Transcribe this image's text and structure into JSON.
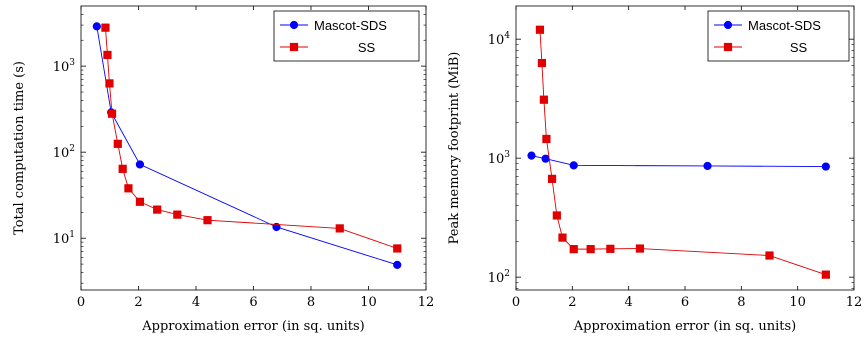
{
  "colors": {
    "blue": "#0000ff",
    "red": "#e00000"
  },
  "chart_data": [
    {
      "type": "line",
      "yscale": "log",
      "xlabel": "Approximation error (in sq. units)",
      "ylabel": "Total computation time (s)",
      "xlim": [
        0,
        12
      ],
      "ylim": [
        2.5,
        5000
      ],
      "xticks": [
        0,
        2,
        4,
        6,
        8,
        10,
        12
      ],
      "yticks": [
        {
          "value": 10,
          "base": "10",
          "exp": "1"
        },
        {
          "value": 100,
          "base": "10",
          "exp": "2"
        },
        {
          "value": 1000,
          "base": "10",
          "exp": "3"
        }
      ],
      "grid": false,
      "legend_position": "top-right",
      "series": [
        {
          "name": "Mascot-SDS",
          "color": "#0000ff",
          "marker": "circle",
          "x": [
            0.55,
            1.05,
            2.05,
            6.8,
            11.0
          ],
          "y": [
            2900,
            290,
            72,
            13.5,
            4.9
          ]
        },
        {
          "name": "SS",
          "color": "#e00000",
          "marker": "square",
          "x": [
            0.85,
            0.92,
            0.99,
            1.08,
            1.28,
            1.45,
            1.65,
            2.05,
            2.65,
            3.35,
            4.4,
            9.0,
            11.0
          ],
          "y": [
            2800,
            1350,
            630,
            280,
            125,
            64,
            38,
            26.5,
            21.5,
            18.8,
            16.2,
            13,
            7.6
          ]
        }
      ]
    },
    {
      "type": "line",
      "yscale": "log",
      "xlabel": "Approximation error (in sq. units)",
      "ylabel": "Peak memory footprint (MiB)",
      "xlim": [
        0,
        12
      ],
      "ylim": [
        78,
        19000
      ],
      "xticks": [
        0,
        2,
        4,
        6,
        8,
        10,
        12
      ],
      "yticks": [
        {
          "value": 100,
          "base": "10",
          "exp": "2"
        },
        {
          "value": 1000,
          "base": "10",
          "exp": "3"
        },
        {
          "value": 10000,
          "base": "10",
          "exp": "4"
        }
      ],
      "grid": false,
      "legend_position": "top-right",
      "series": [
        {
          "name": "Mascot-SDS",
          "color": "#0000ff",
          "marker": "circle",
          "x": [
            0.55,
            1.05,
            2.05,
            6.8,
            11.0
          ],
          "y": [
            1050,
            990,
            870,
            860,
            850
          ]
        },
        {
          "name": "SS",
          "color": "#e00000",
          "marker": "square",
          "x": [
            0.85,
            0.92,
            0.99,
            1.08,
            1.28,
            1.45,
            1.65,
            2.05,
            2.65,
            3.35,
            4.4,
            9.0,
            11.0
          ],
          "y": [
            12000,
            6300,
            3100,
            1450,
            670,
            330,
            215,
            172,
            172,
            173,
            174,
            152,
            105
          ]
        }
      ]
    }
  ]
}
